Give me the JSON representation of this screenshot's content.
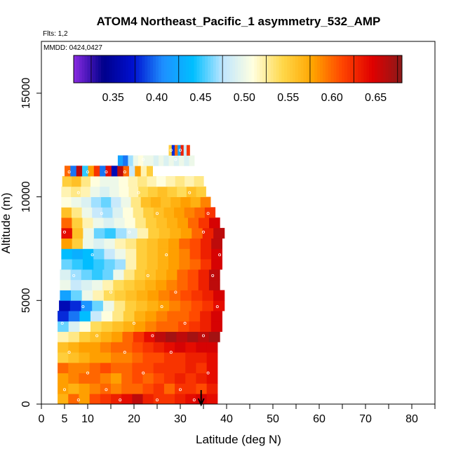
{
  "chart_data": {
    "type": "heatmap",
    "title": "ATOM4 Northeast_Pacific_1 asymmetry_532_AMP",
    "flights_label": "Flts: 1,2",
    "date_label": "MMDD: 0424,0427",
    "xlabel": "Latitude (deg N)",
    "ylabel": "Altitude (m)",
    "xlim": [
      0,
      85
    ],
    "ylim": [
      0,
      17500
    ],
    "x_ticks": [
      0,
      5,
      10,
      20,
      30,
      40,
      50,
      60,
      70,
      80
    ],
    "y_ticks": [
      0,
      5000,
      10000,
      15000
    ],
    "colorbar": {
      "min": 0.305,
      "max": 0.68,
      "ticks": [
        "0.35",
        "0.40",
        "0.45",
        "0.50",
        "0.55",
        "0.60",
        "0.65"
      ],
      "tick_values": [
        0.35,
        0.4,
        0.45,
        0.5,
        0.55,
        0.6,
        0.65
      ],
      "colors": [
        "#8a2be2",
        "#00008b",
        "#0010d0",
        "#1e90ff",
        "#00bfff",
        "#bfe6ff",
        "#ffffe0",
        "#ffd84a",
        "#ffa500",
        "#ff4500",
        "#e00000",
        "#8b1a1a"
      ]
    },
    "marker": {
      "latitude": 34.5,
      "direction": "down"
    },
    "rows": [
      {
        "alt_lo": 0,
        "alt_hi": 500,
        "lat_start": 3.5,
        "lat_end": 38,
        "values": [
          0.57,
          0.6,
          0.58,
          0.61,
          0.62,
          0.63,
          0.64,
          0.66,
          0.63,
          0.62,
          0.62,
          0.63,
          0.64,
          0.65,
          0.64
        ]
      },
      {
        "alt_lo": 500,
        "alt_hi": 1000,
        "lat_start": 3.5,
        "lat_end": 38,
        "values": [
          0.58,
          0.57,
          0.58,
          0.59,
          0.6,
          0.59,
          0.6,
          0.6,
          0.61,
          0.62,
          0.6,
          0.62,
          0.62,
          0.61,
          0.63
        ]
      },
      {
        "alt_lo": 1000,
        "alt_hi": 1500,
        "lat_start": 3.5,
        "lat_end": 38,
        "values": [
          0.58,
          0.59,
          0.6,
          0.6,
          0.59,
          0.58,
          0.6,
          0.61,
          0.6,
          0.61,
          0.62,
          0.63,
          0.62,
          0.63,
          0.64
        ]
      },
      {
        "alt_lo": 1500,
        "alt_hi": 2000,
        "lat_start": 3.5,
        "lat_end": 38,
        "values": [
          0.6,
          0.59,
          0.59,
          0.6,
          0.61,
          0.6,
          0.6,
          0.61,
          0.61,
          0.62,
          0.62,
          0.62,
          0.63,
          0.62,
          0.64
        ]
      },
      {
        "alt_lo": 2000,
        "alt_hi": 2500,
        "lat_start": 3.5,
        "lat_end": 38,
        "values": [
          0.55,
          0.56,
          0.57,
          0.58,
          0.58,
          0.59,
          0.59,
          0.6,
          0.61,
          0.61,
          0.62,
          0.62,
          0.63,
          0.63,
          0.64
        ]
      },
      {
        "alt_lo": 2500,
        "alt_hi": 3000,
        "lat_start": 3.5,
        "lat_end": 38,
        "values": [
          0.56,
          0.57,
          0.58,
          0.58,
          0.59,
          0.6,
          0.6,
          0.61,
          0.62,
          0.63,
          0.64,
          0.65,
          0.64,
          0.65,
          0.65
        ]
      },
      {
        "alt_lo": 3000,
        "alt_hi": 3500,
        "lat_start": 3.5,
        "lat_end": 38.5,
        "values": [
          0.52,
          0.53,
          0.55,
          0.56,
          0.57,
          0.58,
          0.6,
          0.62,
          0.64,
          0.66,
          0.67,
          0.66,
          0.67,
          0.66,
          0.67
        ]
      },
      {
        "alt_lo": 3500,
        "alt_hi": 4000,
        "lat_start": 3.5,
        "lat_end": 39,
        "values": [
          0.46,
          0.49,
          0.51,
          0.54,
          0.55,
          0.56,
          0.57,
          0.58,
          0.59,
          0.6,
          0.6,
          0.61,
          0.62,
          0.63,
          0.65
        ]
      },
      {
        "alt_lo": 4000,
        "alt_hi": 4500,
        "lat_start": 3.5,
        "lat_end": 39,
        "values": [
          0.38,
          0.4,
          0.44,
          0.48,
          0.51,
          0.53,
          0.55,
          0.57,
          0.58,
          0.59,
          0.6,
          0.6,
          0.61,
          0.63,
          0.65
        ]
      },
      {
        "alt_lo": 4500,
        "alt_hi": 5000,
        "lat_start": 3.8,
        "lat_end": 39.5,
        "values": [
          0.36,
          0.38,
          0.41,
          0.46,
          0.5,
          0.53,
          0.55,
          0.56,
          0.57,
          0.58,
          0.59,
          0.6,
          0.61,
          0.62,
          0.64
        ]
      },
      {
        "alt_lo": 5000,
        "alt_hi": 5500,
        "lat_start": 4,
        "lat_end": 39.5,
        "values": [
          0.42,
          0.46,
          0.5,
          0.52,
          0.54,
          0.55,
          0.56,
          0.57,
          0.58,
          0.59,
          0.6,
          0.61,
          0.62,
          0.63,
          0.65
        ]
      },
      {
        "alt_lo": 5500,
        "alt_hi": 6000,
        "lat_start": 4,
        "lat_end": 38.5,
        "values": [
          0.5,
          0.48,
          0.49,
          0.5,
          0.52,
          0.54,
          0.55,
          0.56,
          0.57,
          0.58,
          0.59,
          0.6,
          0.61,
          0.63,
          0.66
        ]
      },
      {
        "alt_lo": 6000,
        "alt_hi": 6500,
        "lat_start": 4,
        "lat_end": 38.5,
        "values": [
          0.49,
          0.47,
          0.46,
          0.45,
          0.46,
          0.5,
          0.53,
          0.55,
          0.56,
          0.57,
          0.58,
          0.6,
          0.61,
          0.63,
          0.66
        ]
      },
      {
        "alt_lo": 6500,
        "alt_hi": 7000,
        "lat_start": 4.3,
        "lat_end": 39,
        "values": [
          0.46,
          0.45,
          0.44,
          0.45,
          0.46,
          0.47,
          0.52,
          0.55,
          0.56,
          0.57,
          0.58,
          0.59,
          0.6,
          0.62,
          0.65
        ]
      },
      {
        "alt_lo": 7000,
        "alt_hi": 7500,
        "lat_start": 4.3,
        "lat_end": 39,
        "values": [
          0.44,
          0.43,
          0.44,
          0.46,
          0.48,
          0.5,
          0.52,
          0.55,
          0.56,
          0.57,
          0.58,
          0.59,
          0.61,
          0.63,
          0.65
        ]
      },
      {
        "alt_lo": 7500,
        "alt_hi": 8000,
        "lat_start": 4.3,
        "lat_end": 39,
        "values": [
          0.58,
          0.55,
          0.5,
          0.49,
          0.5,
          0.52,
          0.53,
          0.55,
          0.56,
          0.57,
          0.58,
          0.6,
          0.61,
          0.63,
          0.66
        ]
      },
      {
        "alt_lo": 8000,
        "alt_hi": 8500,
        "lat_start": 4.3,
        "lat_end": 39.5,
        "values": [
          0.64,
          0.56,
          0.5,
          0.46,
          0.45,
          0.47,
          0.49,
          0.52,
          0.55,
          0.56,
          0.57,
          0.58,
          0.6,
          0.63,
          0.66
        ]
      },
      {
        "alt_lo": 8500,
        "alt_hi": 9000,
        "lat_start": 4.3,
        "lat_end": 38.5,
        "values": [
          0.6,
          0.55,
          0.52,
          0.5,
          0.49,
          0.5,
          0.51,
          0.53,
          0.55,
          0.56,
          0.57,
          0.58,
          0.6,
          0.62,
          0.65
        ]
      },
      {
        "alt_lo": 9000,
        "alt_hi": 9500,
        "lat_start": 4.3,
        "lat_end": 37.5,
        "values": [
          0.56,
          0.53,
          0.5,
          0.48,
          0.47,
          0.49,
          0.51,
          0.53,
          0.55,
          0.56,
          0.57,
          0.58,
          0.59,
          0.6,
          0.62
        ]
      },
      {
        "alt_lo": 9500,
        "alt_hi": 10000,
        "lat_start": 4.3,
        "lat_end": 36.5,
        "values": [
          0.51,
          0.5,
          0.49,
          0.47,
          0.46,
          0.48,
          0.5,
          0.53,
          0.56,
          0.57,
          0.56,
          0.57,
          0.58,
          0.57,
          0.59
        ]
      },
      {
        "alt_lo": 10000,
        "alt_hi": 10500,
        "lat_start": 4.3,
        "lat_end": 35.5,
        "values": [
          0.52,
          0.53,
          0.52,
          0.5,
          0.49,
          0.5,
          0.51,
          0.52,
          0.54,
          0.55,
          0.56,
          0.55,
          0.54,
          0.56,
          0.55
        ]
      },
      {
        "alt_lo": 10500,
        "alt_hi": 11000,
        "lat_start": 4.5,
        "lat_end": 35,
        "values": [
          0.55,
          0.56,
          0.53,
          0.51,
          0.5,
          0.5,
          0.51,
          0.52,
          0.53,
          0.52,
          0.51,
          0.52,
          0.53,
          0.52,
          0.53
        ]
      },
      {
        "alt_lo": 11000,
        "alt_hi": 11500,
        "lat_start": 5,
        "lat_end": 24,
        "values": [
          0.6,
          0.4,
          0.66,
          0.45,
          0.58,
          0.62,
          0.4,
          0.64,
          0.36,
          0.66,
          0.6,
          0.48,
          0.58,
          0.52,
          0.55
        ]
      },
      {
        "alt_lo": 11500,
        "alt_hi": 12000,
        "lat_start": 16.5,
        "lat_end": 33,
        "values": [
          0.42,
          0.4,
          0.47,
          0.5,
          0.51,
          0.5,
          0.5,
          0.49,
          0.5,
          0.49,
          0.5,
          0.49,
          0.5,
          0.49,
          0.5
        ]
      },
      {
        "alt_lo": 12000,
        "alt_hi": 12500,
        "lat_start": 27.5,
        "lat_end": 32,
        "values": [
          0.55,
          0.38,
          0.6,
          0.42,
          0.63,
          0.48,
          0.62
        ]
      }
    ],
    "sample_points": [
      {
        "lat": 8,
        "alt": 200
      },
      {
        "lat": 17,
        "alt": 200
      },
      {
        "lat": 25,
        "alt": 200
      },
      {
        "lat": 33,
        "alt": 200
      },
      {
        "lat": 5,
        "alt": 700
      },
      {
        "lat": 14,
        "alt": 700
      },
      {
        "lat": 30,
        "alt": 700
      },
      {
        "lat": 10,
        "alt": 1500
      },
      {
        "lat": 22,
        "alt": 1500
      },
      {
        "lat": 36,
        "alt": 1500
      },
      {
        "lat": 6,
        "alt": 2500
      },
      {
        "lat": 18,
        "alt": 2500
      },
      {
        "lat": 28,
        "alt": 2500
      },
      {
        "lat": 12,
        "alt": 3300
      },
      {
        "lat": 24,
        "alt": 3300
      },
      {
        "lat": 35,
        "alt": 3300
      },
      {
        "lat": 4.5,
        "alt": 3900
      },
      {
        "lat": 20,
        "alt": 3900
      },
      {
        "lat": 31,
        "alt": 3900
      },
      {
        "lat": 9,
        "alt": 4700
      },
      {
        "lat": 26,
        "alt": 4700
      },
      {
        "lat": 38,
        "alt": 4700
      },
      {
        "lat": 15,
        "alt": 5400
      },
      {
        "lat": 29,
        "alt": 5400
      },
      {
        "lat": 7,
        "alt": 6200
      },
      {
        "lat": 23,
        "alt": 6200
      },
      {
        "lat": 37,
        "alt": 6200
      },
      {
        "lat": 11,
        "alt": 7200
      },
      {
        "lat": 27,
        "alt": 7200
      },
      {
        "lat": 38.5,
        "alt": 7200
      },
      {
        "lat": 5,
        "alt": 8300
      },
      {
        "lat": 19,
        "alt": 8300
      },
      {
        "lat": 35,
        "alt": 8300
      },
      {
        "lat": 13,
        "alt": 9200
      },
      {
        "lat": 25,
        "alt": 9200
      },
      {
        "lat": 36,
        "alt": 9200
      },
      {
        "lat": 8,
        "alt": 10200
      },
      {
        "lat": 21,
        "alt": 10200
      },
      {
        "lat": 32,
        "alt": 10200
      },
      {
        "lat": 6,
        "alt": 11200
      },
      {
        "lat": 10,
        "alt": 11200
      },
      {
        "lat": 14,
        "alt": 11200
      },
      {
        "lat": 18,
        "alt": 11200
      },
      {
        "lat": 22,
        "alt": 11800
      },
      {
        "lat": 29,
        "alt": 11800
      },
      {
        "lat": 28,
        "alt": 12250
      },
      {
        "lat": 30,
        "alt": 12250
      }
    ]
  }
}
